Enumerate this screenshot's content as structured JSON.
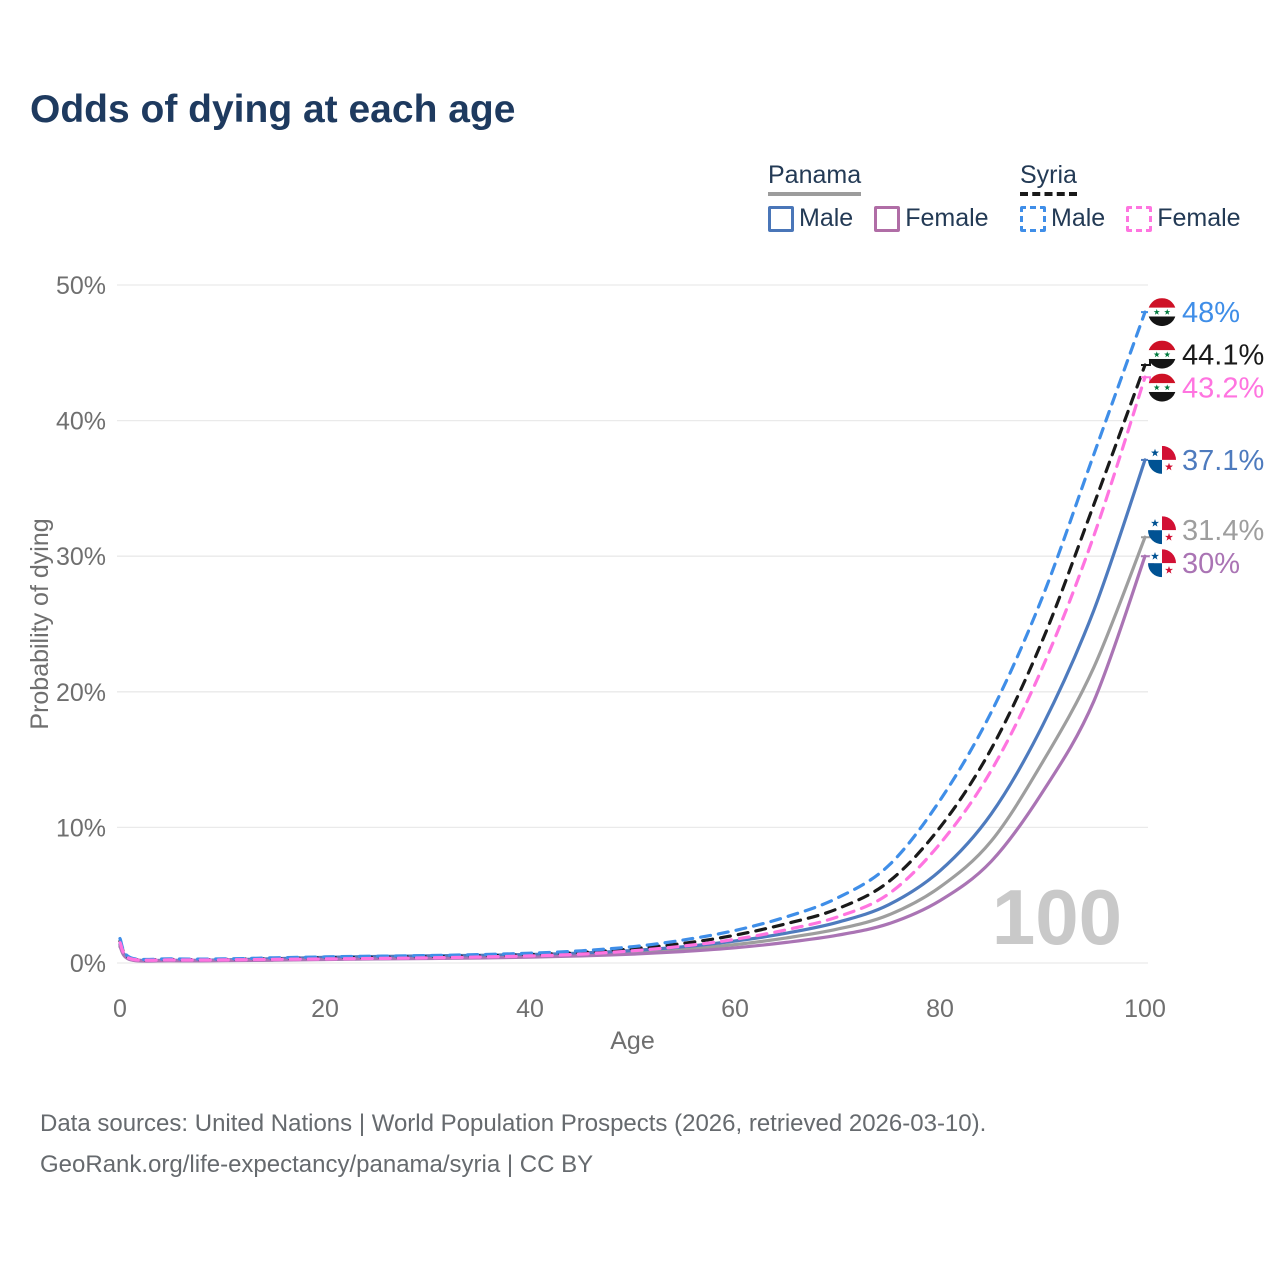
{
  "header": {
    "title": "Odds of dying at each age"
  },
  "legend": {
    "groups": [
      {
        "name": "Panama",
        "line_style": "solid",
        "key_color": "#9c9c9c",
        "items": [
          {
            "label": "Male",
            "color": "#4a76b8",
            "dashed": false
          },
          {
            "label": "Female",
            "color": "#b06da6",
            "dashed": false
          }
        ]
      },
      {
        "name": "Syria",
        "line_style": "dashed",
        "key_color": "#1a1a1a",
        "items": [
          {
            "label": "Male",
            "color": "#3f8ee8",
            "dashed": true
          },
          {
            "label": "Female",
            "color": "#ff74e0",
            "dashed": true
          }
        ]
      }
    ]
  },
  "chart_data": {
    "type": "line",
    "title": "Odds of dying at each age",
    "xlabel": "Age",
    "ylabel": "Probability of dying",
    "xlim": [
      0,
      100
    ],
    "ylim": [
      0,
      50
    ],
    "x_tick_values": [
      0,
      20,
      40,
      60,
      80,
      100
    ],
    "x_tick_labels": [
      "0",
      "20",
      "40",
      "60",
      "80",
      "100"
    ],
    "y_tick_values": [
      0,
      10,
      20,
      30,
      40,
      50
    ],
    "y_tick_labels": [
      "0%",
      "10%",
      "20%",
      "30%",
      "40%",
      "50%"
    ],
    "grid": true,
    "grid_color": "#eaeaea",
    "watermark": "100",
    "watermark_color": "#c9c9c9",
    "legend_position": "top-right",
    "x": [
      0,
      1,
      5,
      10,
      15,
      20,
      25,
      30,
      35,
      40,
      45,
      50,
      55,
      60,
      65,
      70,
      75,
      80,
      85,
      90,
      95,
      100
    ],
    "series": [
      {
        "name": "Panama Both sexes",
        "country": "Panama",
        "sex": "Both",
        "flag": "panama",
        "color": "#9e9e9e",
        "dashed": false,
        "end_label": "31.4%",
        "values": [
          1.3,
          0.27,
          0.18,
          0.19,
          0.27,
          0.34,
          0.39,
          0.43,
          0.47,
          0.53,
          0.62,
          0.78,
          1.02,
          1.36,
          1.85,
          2.5,
          3.55,
          5.6,
          9.0,
          14.8,
          21.8,
          31.4
        ]
      },
      {
        "name": "Panama Male",
        "country": "Panama",
        "sex": "Male",
        "flag": "panama",
        "color": "#4e7bbe",
        "dashed": false,
        "end_label": "37.1%",
        "values": [
          1.4,
          0.3,
          0.2,
          0.22,
          0.32,
          0.42,
          0.48,
          0.52,
          0.57,
          0.63,
          0.73,
          0.92,
          1.2,
          1.62,
          2.2,
          3.0,
          4.3,
          6.8,
          11.0,
          17.5,
          26.0,
          37.1
        ]
      },
      {
        "name": "Panama Female",
        "country": "Panama",
        "sex": "Female",
        "flag": "panama",
        "color": "#aa74b4",
        "dashed": false,
        "end_label": "30%",
        "values": [
          1.2,
          0.24,
          0.16,
          0.17,
          0.21,
          0.26,
          0.3,
          0.33,
          0.37,
          0.43,
          0.52,
          0.65,
          0.85,
          1.12,
          1.52,
          2.05,
          2.9,
          4.6,
          7.5,
          12.6,
          19.3,
          30.0
        ]
      },
      {
        "name": "Syria Both sexes",
        "country": "Syria",
        "sex": "Both",
        "flag": "syria",
        "color": "#1a1a1a",
        "dashed": true,
        "end_label": "44.1%",
        "values": [
          1.6,
          0.35,
          0.26,
          0.26,
          0.32,
          0.38,
          0.42,
          0.46,
          0.52,
          0.62,
          0.78,
          1.05,
          1.45,
          2.05,
          2.9,
          4.0,
          6.0,
          10.0,
          15.8,
          23.8,
          33.8,
          44.1
        ]
      },
      {
        "name": "Syria Male",
        "country": "Syria",
        "sex": "Male",
        "flag": "syria",
        "color": "#3f8ee8",
        "dashed": true,
        "end_label": "48%",
        "values": [
          1.8,
          0.4,
          0.3,
          0.3,
          0.38,
          0.45,
          0.5,
          0.55,
          0.62,
          0.72,
          0.9,
          1.2,
          1.7,
          2.4,
          3.4,
          4.8,
          7.2,
          12.0,
          18.5,
          27.0,
          37.5,
          48.0
        ]
      },
      {
        "name": "Syria Female",
        "country": "Syria",
        "sex": "Female",
        "flag": "syria",
        "color": "#ff74e0",
        "dashed": true,
        "end_label": "43.2%",
        "values": [
          1.5,
          0.32,
          0.23,
          0.23,
          0.27,
          0.3,
          0.34,
          0.38,
          0.44,
          0.52,
          0.66,
          0.9,
          1.25,
          1.75,
          2.45,
          3.4,
          5.1,
          8.8,
          14.2,
          21.8,
          31.5,
          43.2
        ]
      }
    ]
  },
  "footer": {
    "line1": "Data sources: United Nations | World Population Prospects (2026, retrieved 2026-03-10).",
    "line2": "GeoRank.org/life-expectancy/panama/syria | CC BY"
  }
}
